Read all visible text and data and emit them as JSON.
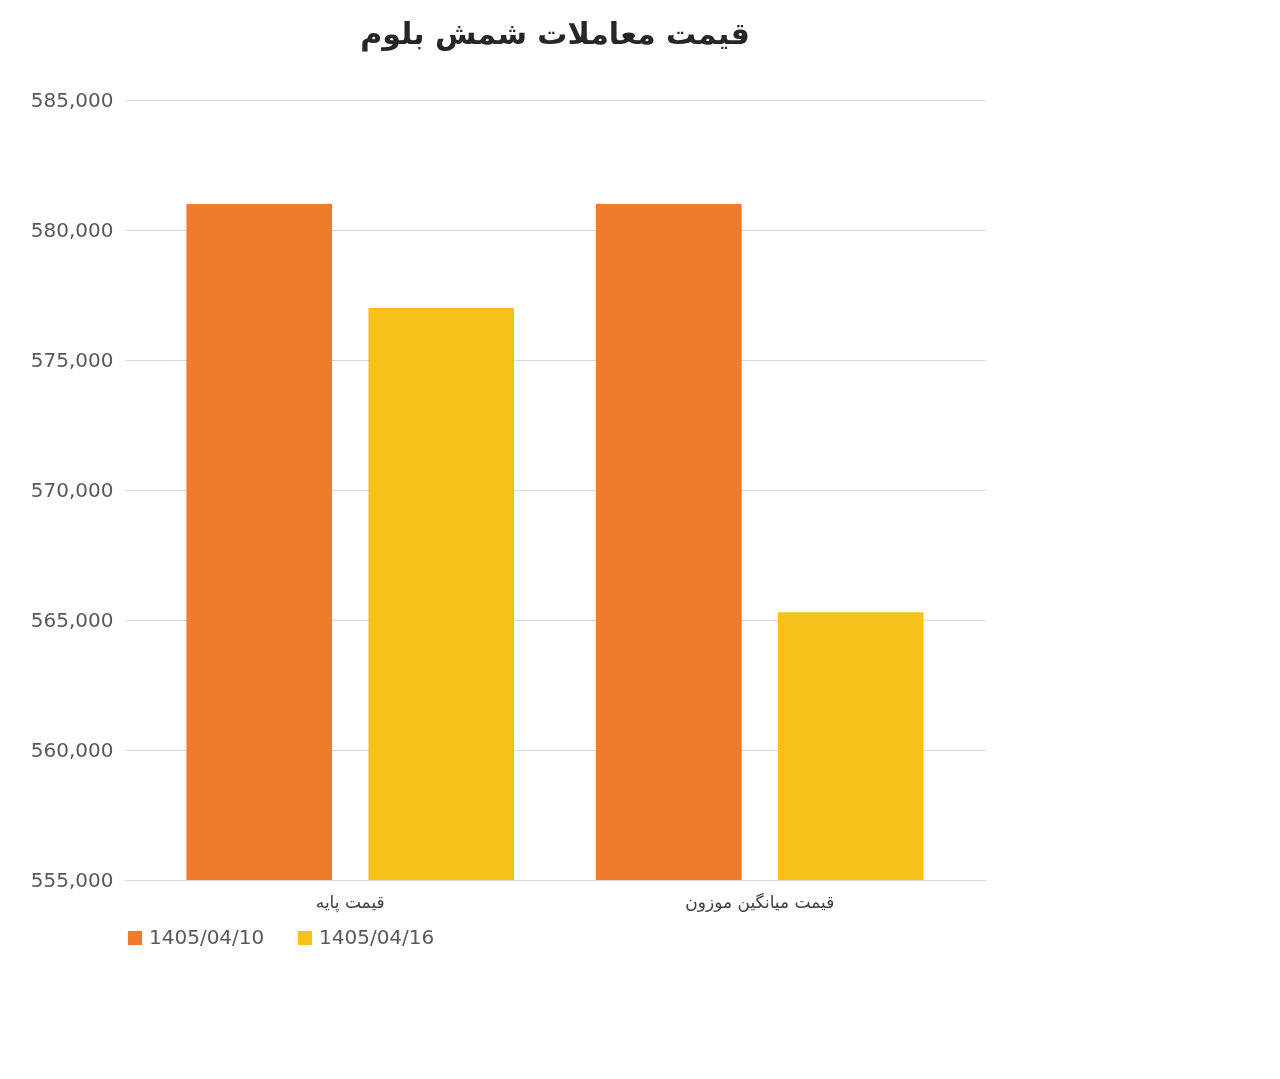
{
  "chart_data": {
    "type": "bar",
    "title": "قیمت معاملات شمش بلوم",
    "categories": [
      "قیمت پایه",
      "قیمت میانگین موزون"
    ],
    "series": [
      {
        "name": "1405/04/10",
        "color": "#ef7b2b",
        "values": [
          581000,
          581000
        ]
      },
      {
        "name": "1405/04/16",
        "color": "#f7c11c",
        "values": [
          577000,
          565300
        ]
      }
    ],
    "ylim": [
      555000,
      585000
    ],
    "yticks": [
      {
        "value": 555000,
        "label": "555,000"
      },
      {
        "value": 560000,
        "label": "560,000"
      },
      {
        "value": 565000,
        "label": "565,000"
      },
      {
        "value": 570000,
        "label": "570,000"
      },
      {
        "value": 575000,
        "label": "575,000"
      },
      {
        "value": 580000,
        "label": "580,000"
      },
      {
        "value": 585000,
        "label": "585,000"
      }
    ],
    "grid": "y",
    "legend": "bottom"
  }
}
